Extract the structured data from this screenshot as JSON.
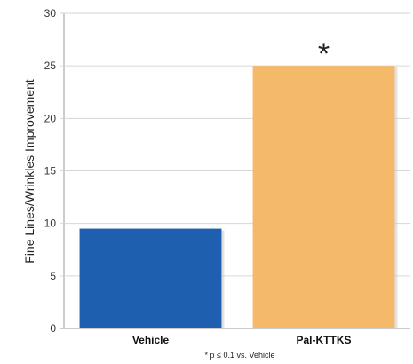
{
  "chart_data": {
    "type": "bar",
    "categories": [
      "Vehicle",
      "Pal-KTTKS"
    ],
    "values": [
      9.5,
      25
    ],
    "ylabel": "Fine Lines/Wrinkles Improvement",
    "xlabel": "",
    "ylim": [
      0,
      30
    ],
    "yticks": [
      0,
      5,
      10,
      15,
      20,
      25,
      30
    ],
    "grid": true,
    "bar_colors": [
      "#1f5fb0",
      "#f5b96a"
    ],
    "annotations": [
      {
        "category": "Pal-KTTKS",
        "text": "*"
      }
    ],
    "footnote": "* p ≤ 0.1 vs. Vehicle"
  }
}
